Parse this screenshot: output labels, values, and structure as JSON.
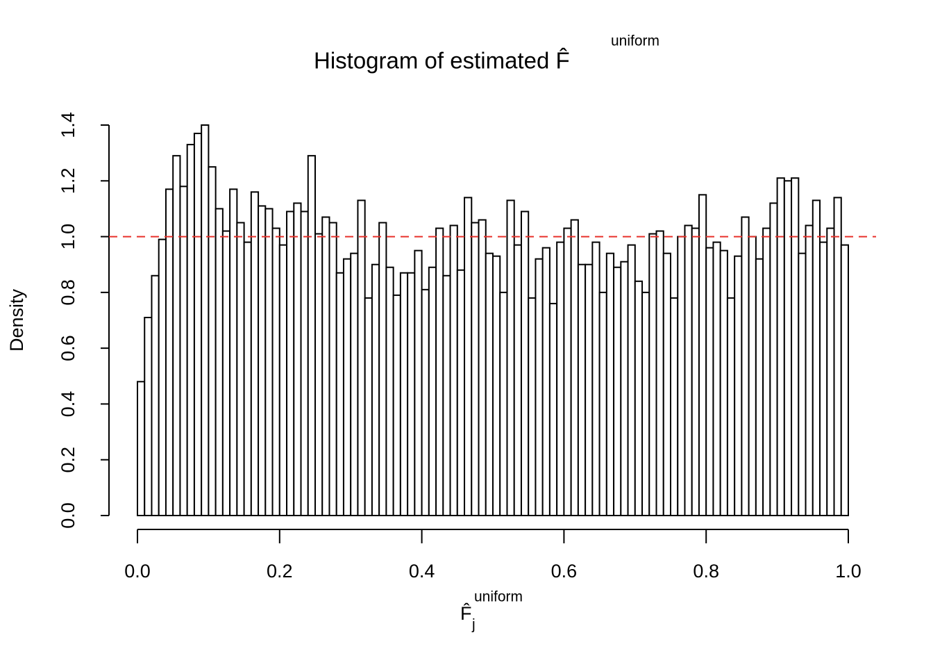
{
  "chart_data": {
    "type": "histogram",
    "title": "Histogram of estimated F̂",
    "title_superscript": "uniform",
    "xlabel": "F̂",
    "xlabel_subscript": "j",
    "xlabel_superscript": "uniform",
    "ylabel": "Density",
    "bins": [
      0,
      0.01,
      0.02,
      0.03,
      0.04,
      0.05,
      0.06,
      0.07,
      0.08,
      0.09,
      0.1,
      0.11,
      0.12,
      0.13,
      0.14,
      0.15,
      0.16,
      0.17,
      0.18,
      0.19,
      0.2,
      0.21,
      0.22,
      0.23,
      0.24,
      0.25,
      0.26,
      0.27,
      0.28,
      0.29,
      0.3,
      0.31,
      0.32,
      0.33,
      0.34,
      0.35,
      0.36,
      0.37,
      0.38,
      0.39,
      0.4,
      0.41,
      0.42,
      0.43,
      0.44,
      0.45,
      0.46,
      0.47,
      0.48,
      0.49,
      0.5,
      0.51,
      0.52,
      0.53,
      0.54,
      0.55,
      0.56,
      0.57,
      0.58,
      0.59,
      0.6,
      0.61,
      0.62,
      0.63,
      0.64,
      0.65,
      0.66,
      0.67,
      0.68,
      0.69,
      0.7,
      0.71,
      0.72,
      0.73,
      0.74,
      0.75,
      0.76,
      0.77,
      0.78,
      0.79,
      0.8,
      0.81,
      0.82,
      0.83,
      0.84,
      0.85,
      0.86,
      0.87,
      0.88,
      0.89,
      0.9,
      0.91,
      0.92,
      0.93,
      0.94,
      0.95,
      0.96,
      0.97,
      0.98,
      0.99,
      1
    ],
    "values": [
      0.48,
      0.71,
      0.86,
      0.99,
      1.17,
      1.29,
      1.18,
      1.33,
      1.37,
      1.4,
      1.25,
      1.1,
      1.02,
      1.17,
      1.05,
      0.98,
      1.16,
      1.11,
      1.1,
      1.03,
      0.97,
      1.09,
      1.12,
      1.09,
      1.29,
      1.01,
      1.07,
      1.05,
      0.87,
      0.92,
      0.94,
      1.13,
      0.78,
      0.9,
      1.05,
      0.89,
      0.79,
      0.87,
      0.87,
      0.95,
      0.81,
      0.89,
      1.03,
      0.86,
      1.04,
      0.88,
      1.14,
      1.05,
      1.06,
      0.94,
      0.93,
      0.8,
      1.13,
      0.97,
      1.09,
      0.78,
      0.92,
      0.96,
      0.76,
      0.98,
      1.03,
      1.06,
      0.9,
      0.9,
      0.98,
      0.8,
      0.94,
      0.89,
      0.91,
      0.97,
      0.84,
      0.8,
      1.01,
      1.02,
      0.94,
      0.78,
      1,
      1.04,
      1.03,
      1.15,
      0.96,
      0.98,
      0.95,
      0.78,
      0.93,
      1.07,
      1,
      0.92,
      1.03,
      1.12,
      1.21,
      1.2,
      1.21,
      0.94,
      1.04,
      1.13,
      0.98,
      1.03,
      1.14,
      0.97
    ],
    "color": "#ffffff",
    "xlim": [
      0,
      1
    ],
    "ylim": [
      0,
      1.4
    ],
    "xticks": [
      {
        "value": 0,
        "label": "0.0"
      },
      0.2,
      0.4,
      0.6,
      0.8,
      {
        "value": 1,
        "label": "1.0"
      }
    ],
    "yticks": [
      {
        "value": 0,
        "label": "0.0"
      },
      0.2,
      0.4,
      0.6,
      0.8,
      {
        "value": 1,
        "label": "1.0"
      },
      1.2,
      1.4
    ],
    "hline": {
      "value": 1,
      "color": "#e8302a"
    }
  }
}
